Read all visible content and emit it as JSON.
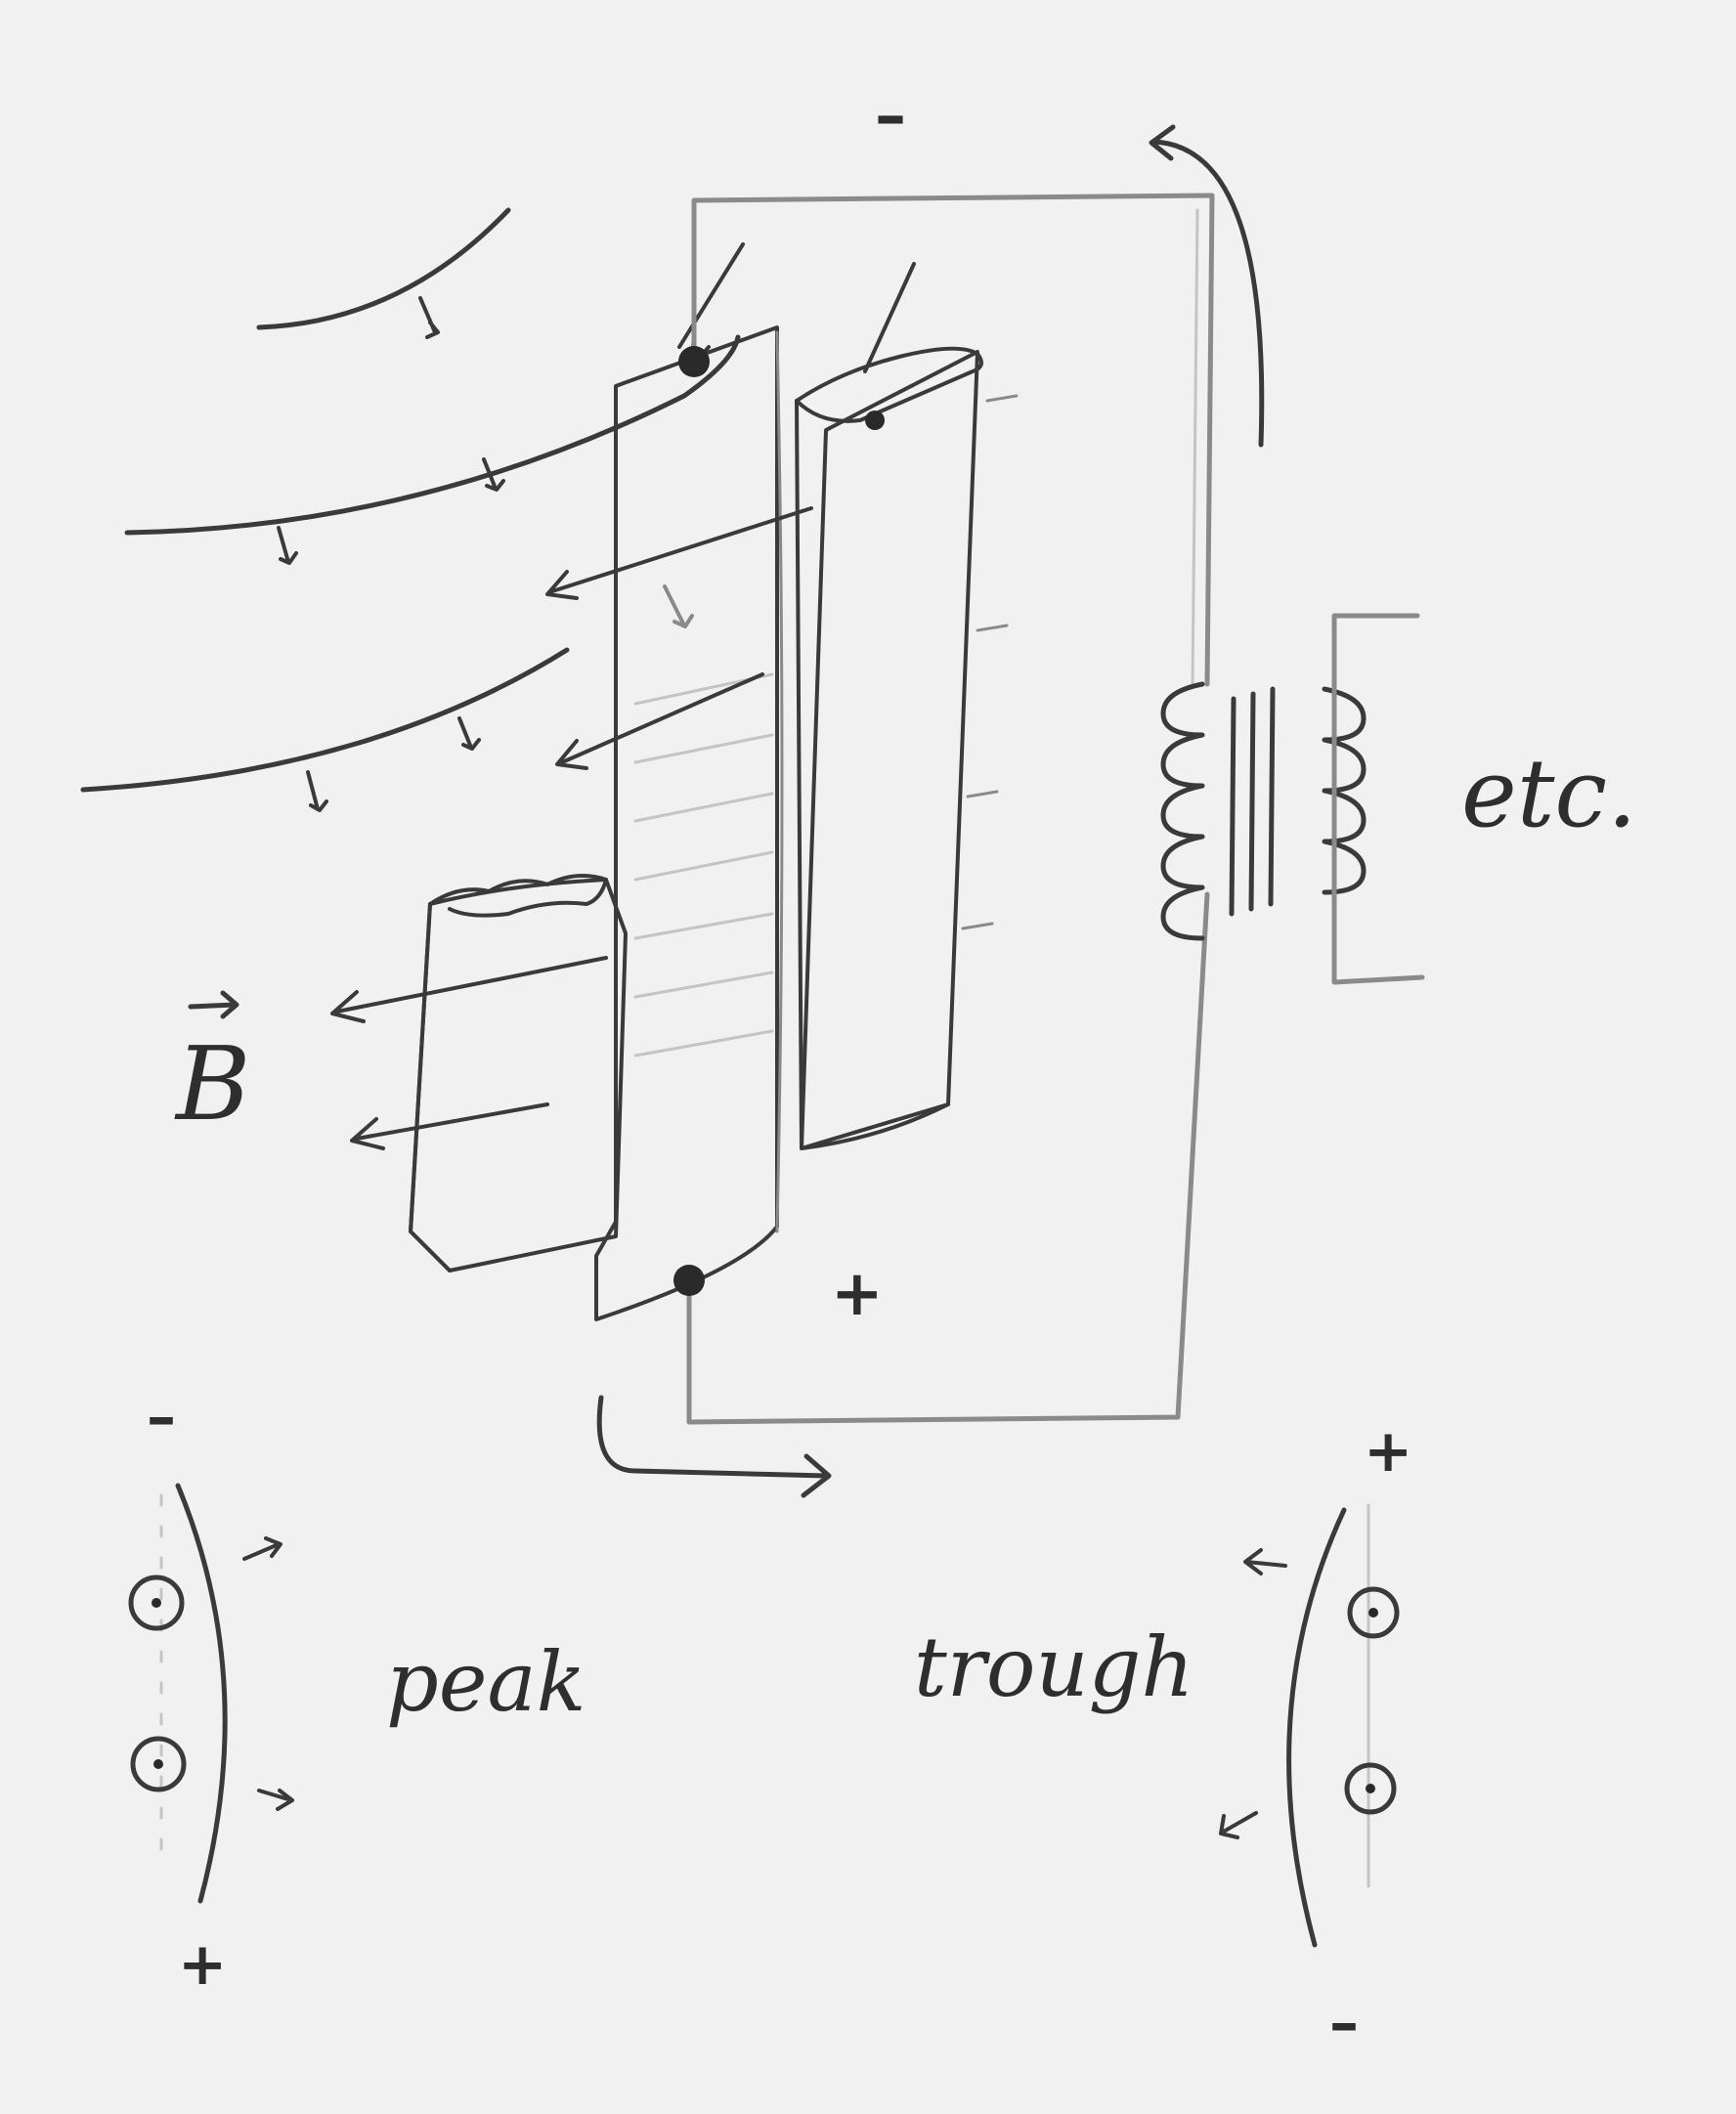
{
  "labels": {
    "minus_top": "–",
    "plus_mid": "+",
    "field_label": "B",
    "etc": "etc.",
    "peak": "peak",
    "trough": "trough",
    "peak_top_sign": "–",
    "peak_bottom_sign": "+",
    "trough_top_sign": "+",
    "trough_bottom_sign": "–"
  },
  "colors": {
    "paper": "#f1f1f1",
    "pencil": "#3a3a3a",
    "shading": "#8a8a8a"
  }
}
